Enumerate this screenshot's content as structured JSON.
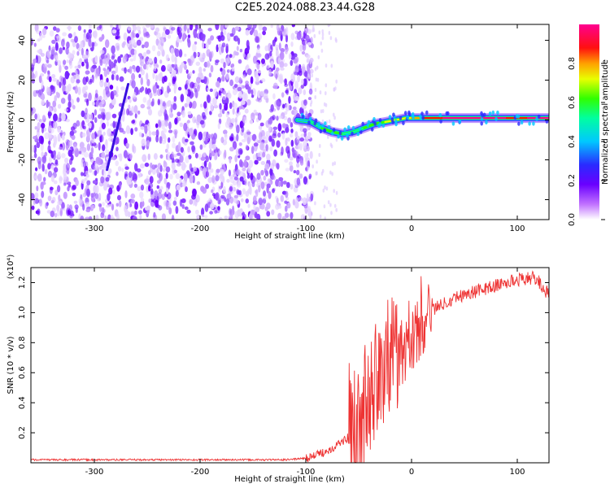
{
  "title": "C2E5.2024.088.23.44.G28",
  "chart_data": [
    {
      "type": "heatmap",
      "xlabel": "Height of straight line (km)",
      "ylabel": "Frequency (Hz)",
      "xlim": [
        -360,
        130
      ],
      "ylim": [
        -50,
        48
      ],
      "xticks": [
        -300,
        -200,
        -100,
        0,
        100
      ],
      "yticks": [
        -40,
        -20,
        0,
        20,
        40
      ],
      "colorbar": {
        "label": "Normalized spectral amplitude",
        "range": [
          0.0,
          1.0
        ],
        "ticks": [
          0.0,
          0.2,
          0.4,
          0.6,
          0.8
        ],
        "colormap": "rainbow (white-violet-blue-cyan-green-yellow-red-magenta)"
      },
      "noise_region_x": [
        -360,
        -100
      ],
      "bright_streak": {
        "x": [
          -288,
          -268
        ],
        "y": [
          -25,
          18
        ]
      },
      "signal_trace": {
        "x": [
          -108,
          -95,
          -85,
          -75,
          -65,
          -55,
          -45,
          -35,
          -25,
          -15,
          -5,
          0,
          10,
          30,
          50,
          70,
          90,
          110,
          130
        ],
        "y": [
          0,
          -1,
          -4,
          -6,
          -7,
          -6,
          -4,
          -2,
          -1,
          0,
          1,
          1,
          1,
          1,
          1,
          1,
          1,
          1,
          1
        ],
        "amplitude": [
          0.3,
          0.45,
          0.55,
          0.6,
          0.5,
          0.5,
          0.5,
          0.55,
          0.6,
          0.65,
          0.7,
          0.72,
          0.8,
          0.9,
          0.95,
          0.95,
          0.85,
          0.9,
          0.9
        ]
      }
    },
    {
      "type": "line",
      "xlabel": "Height of straight line (km)",
      "ylabel": "SNR (10 * v/v)",
      "scale_note": "(x10⁴)",
      "xlim": [
        -360,
        130
      ],
      "ylim": [
        0,
        1.3
      ],
      "xticks": [
        -300,
        -200,
        -100,
        0,
        100
      ],
      "yticks": [
        0.2,
        0.4,
        0.6,
        0.8,
        1.0,
        1.2
      ],
      "color": "#ee3333",
      "series": [
        {
          "x": [
            -360,
            -300,
            -200,
            -120,
            -100,
            -90,
            -80,
            -70,
            -60,
            -50,
            -45,
            -40,
            -35,
            -30,
            -25,
            -20,
            -15,
            -10,
            -5,
            0,
            5,
            10,
            15,
            20,
            30,
            40,
            50,
            60,
            70,
            80,
            90,
            100,
            110,
            115,
            120,
            125,
            130
          ],
          "y": [
            0.02,
            0.02,
            0.02,
            0.02,
            0.03,
            0.05,
            0.08,
            0.12,
            0.17,
            0.25,
            0.32,
            0.42,
            0.5,
            0.55,
            0.6,
            0.64,
            0.68,
            0.72,
            0.76,
            0.8,
            0.86,
            0.93,
            0.98,
            1.02,
            1.06,
            1.1,
            1.12,
            1.14,
            1.16,
            1.18,
            1.2,
            1.22,
            1.23,
            1.23,
            1.21,
            1.16,
            1.12
          ]
        }
      ]
    }
  ]
}
